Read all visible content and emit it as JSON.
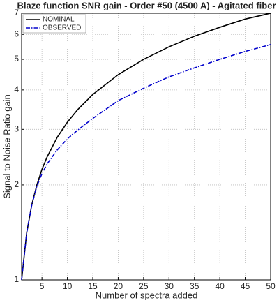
{
  "chart_data": {
    "type": "line",
    "title": "Blaze function SNR gain - Order #50 (4500 A) - Agitated fiber",
    "x_label": "Number of spectra added",
    "y_label": "Signal to Noise Ratio gain",
    "x": [
      1,
      2,
      3,
      4,
      5,
      6,
      8,
      10,
      12,
      15,
      20,
      25,
      30,
      35,
      40,
      45,
      50
    ],
    "series": [
      {
        "name": "NOMINAL",
        "color": "#000000",
        "dash": "solid",
        "values": [
          1,
          1.41,
          1.73,
          2,
          2.24,
          2.45,
          2.83,
          3.16,
          3.46,
          3.87,
          4.47,
          5,
          5.48,
          5.92,
          6.32,
          6.71,
          7.0
        ]
      },
      {
        "name": "OBSERVED",
        "color": "#0000cc",
        "dash": "dashdot",
        "values": [
          1,
          1.41,
          1.73,
          1.98,
          2.17,
          2.33,
          2.58,
          2.8,
          2.98,
          3.25,
          3.7,
          4.05,
          4.4,
          4.7,
          5.0,
          5.3,
          5.57
        ]
      }
    ],
    "xlim": [
      1,
      50
    ],
    "xticks": [
      5,
      10,
      15,
      20,
      25,
      30,
      35,
      40,
      45,
      50
    ],
    "ylim": [
      1,
      7
    ],
    "yticks": [
      1,
      2,
      3,
      4,
      5,
      6,
      7
    ],
    "log_y": true,
    "grid": true,
    "legend": "upper-left"
  }
}
